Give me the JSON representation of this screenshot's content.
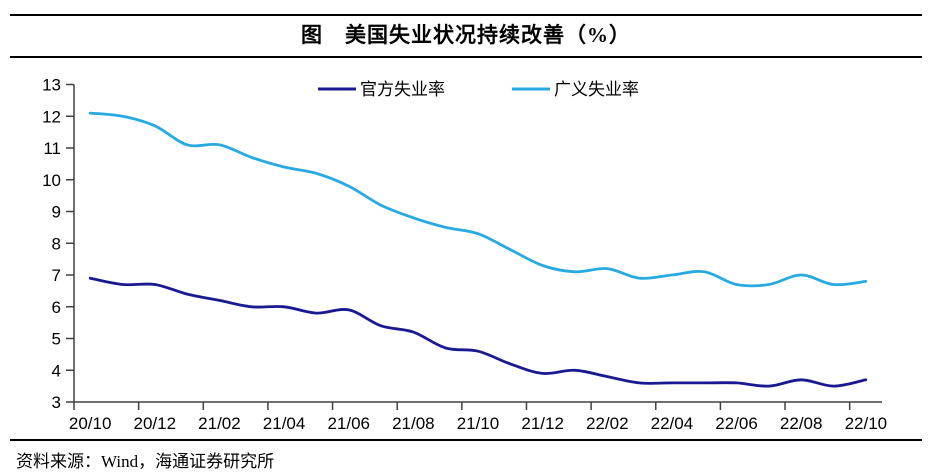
{
  "header": {
    "title": "图　美国失业状况持续改善（%）"
  },
  "footer": {
    "source": "资料来源：Wind，海通证券研究所"
  },
  "chart_data": {
    "type": "line",
    "title": "美国失业状况持续改善（%）",
    "smooth": true,
    "grid": false,
    "legend_position": "top-center",
    "xlabel": "",
    "ylabel": "",
    "ylim": [
      3,
      13
    ],
    "y_ticks": [
      3,
      4,
      5,
      6,
      7,
      8,
      9,
      10,
      11,
      12,
      13
    ],
    "x": [
      "20/10",
      "20/11",
      "20/12",
      "21/01",
      "21/02",
      "21/03",
      "21/04",
      "21/05",
      "21/06",
      "21/07",
      "21/08",
      "21/09",
      "21/10",
      "21/11",
      "21/12",
      "22/01",
      "22/02",
      "22/03",
      "22/04",
      "22/05",
      "22/06",
      "22/07",
      "22/08",
      "22/09",
      "22/10"
    ],
    "x_tick_labels": [
      "20/10",
      "20/12",
      "21/02",
      "21/04",
      "21/06",
      "21/08",
      "21/10",
      "21/12",
      "22/02",
      "22/04",
      "22/06",
      "22/08",
      "22/10"
    ],
    "series": [
      {
        "name": "官方失业率",
        "color": "#191991",
        "values": [
          6.9,
          6.7,
          6.7,
          6.4,
          6.2,
          6.0,
          6.0,
          5.8,
          5.9,
          5.4,
          5.2,
          4.7,
          4.6,
          4.2,
          3.9,
          4.0,
          3.8,
          3.6,
          3.6,
          3.6,
          3.6,
          3.5,
          3.7,
          3.5,
          3.7
        ]
      },
      {
        "name": "广义失业率",
        "color": "#27AAE1",
        "values": [
          12.1,
          12.0,
          11.7,
          11.1,
          11.1,
          10.7,
          10.4,
          10.2,
          9.8,
          9.2,
          8.8,
          8.5,
          8.3,
          7.8,
          7.3,
          7.1,
          7.2,
          6.9,
          7.0,
          7.1,
          6.7,
          6.7,
          7.0,
          6.7,
          6.8
        ]
      }
    ],
    "axis_color": "#404040"
  }
}
